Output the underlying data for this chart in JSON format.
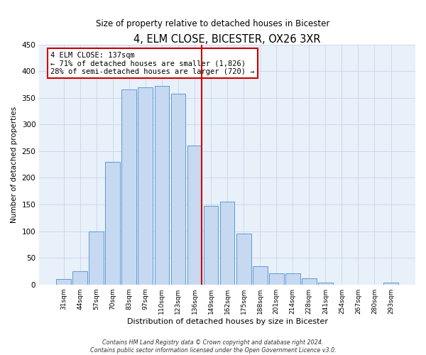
{
  "title": "4, ELM CLOSE, BICESTER, OX26 3XR",
  "subtitle": "Size of property relative to detached houses in Bicester",
  "xlabel": "Distribution of detached houses by size in Bicester",
  "ylabel": "Number of detached properties",
  "bar_labels": [
    "31sqm",
    "44sqm",
    "57sqm",
    "70sqm",
    "83sqm",
    "97sqm",
    "110sqm",
    "123sqm",
    "136sqm",
    "149sqm",
    "162sqm",
    "175sqm",
    "188sqm",
    "201sqm",
    "214sqm",
    "228sqm",
    "241sqm",
    "254sqm",
    "267sqm",
    "280sqm",
    "293sqm"
  ],
  "bar_values": [
    10,
    25,
    100,
    230,
    365,
    370,
    372,
    357,
    260,
    147,
    155,
    96,
    34,
    21,
    21,
    11,
    3,
    0,
    0,
    0,
    3
  ],
  "bar_color": "#c6d9f1",
  "bar_edge_color": "#5b9bd5",
  "highlight_index": 8,
  "highlight_line_color": "#cc0000",
  "ylim": [
    0,
    450
  ],
  "yticks": [
    0,
    50,
    100,
    150,
    200,
    250,
    300,
    350,
    400,
    450
  ],
  "annotation_title": "4 ELM CLOSE: 137sqm",
  "annotation_line1": "← 71% of detached houses are smaller (1,826)",
  "annotation_line2": "28% of semi-detached houses are larger (720) →",
  "annotation_box_color": "#ffffff",
  "annotation_box_edge": "#cc0000",
  "footer_line1": "Contains HM Land Registry data © Crown copyright and database right 2024.",
  "footer_line2": "Contains public sector information licensed under the Open Government Licence v3.0.",
  "background_color": "#ffffff",
  "plot_bg_color": "#e8f0fa",
  "grid_color": "#c8d4e8",
  "title_fontsize": 10.5,
  "subtitle_fontsize": 8.5
}
